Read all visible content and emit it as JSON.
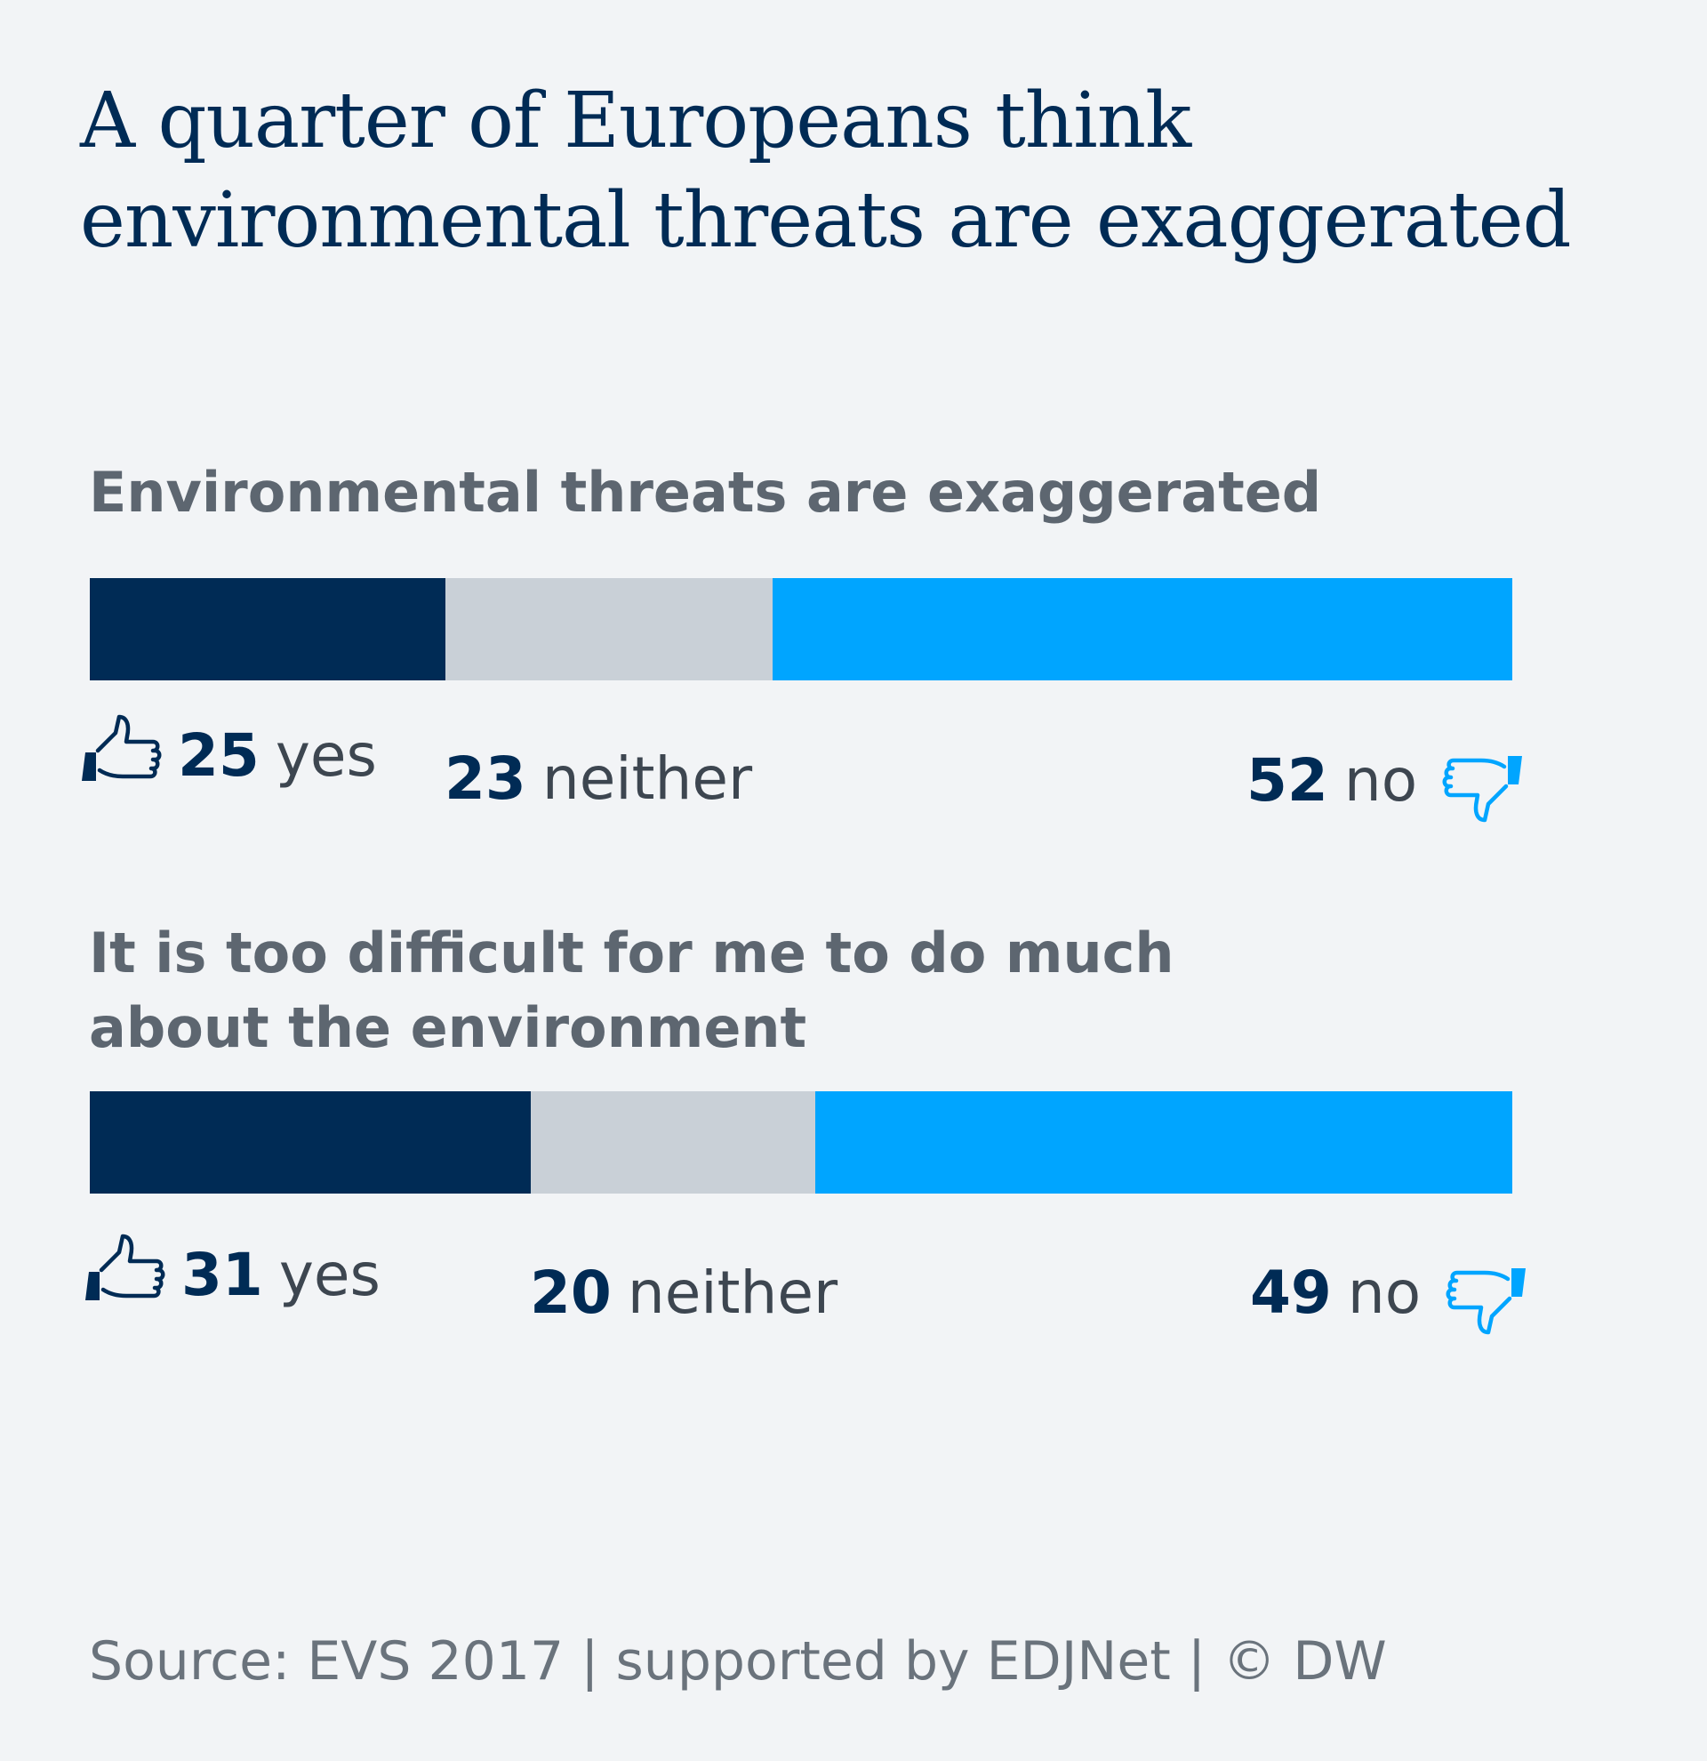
{
  "title": {
    "line1": "A quarter of Europeans think",
    "line2": "environmental threats are exaggerated"
  },
  "chart_data": {
    "type": "bar",
    "stacked": true,
    "orientation": "horizontal",
    "categories": [
      "Environmental threats are exaggerated",
      "It is too difficult for me to do much about the environment"
    ],
    "series": [
      {
        "name": "yes",
        "values": [
          25,
          31
        ]
      },
      {
        "name": "neither",
        "values": [
          23,
          20
        ]
      },
      {
        "name": "no",
        "values": [
          52,
          49
        ]
      }
    ],
    "xlim": [
      0,
      100
    ],
    "grid": false
  },
  "questions": [
    {
      "line1": "Environmental threats are exaggerated",
      "line2": "",
      "yes": {
        "value": "25",
        "label": "yes"
      },
      "neither": {
        "value": "23",
        "label": "neither"
      },
      "no": {
        "value": "52",
        "label": "no"
      }
    },
    {
      "line1": "It is too difficult for me to do much",
      "line2": "about the environment",
      "yes": {
        "value": "31",
        "label": "yes"
      },
      "neither": {
        "value": "20",
        "label": "neither"
      },
      "no": {
        "value": "49",
        "label": "no"
      }
    }
  ],
  "colors": {
    "yes": "#002b55",
    "neither": "#c9d0d7",
    "no": "#00a5ff"
  },
  "icons": {
    "yes": "thumbs-up-icon",
    "no": "thumbs-down-icon"
  },
  "source": "Source: EVS 2017 | supported by EDJNet | © DW"
}
